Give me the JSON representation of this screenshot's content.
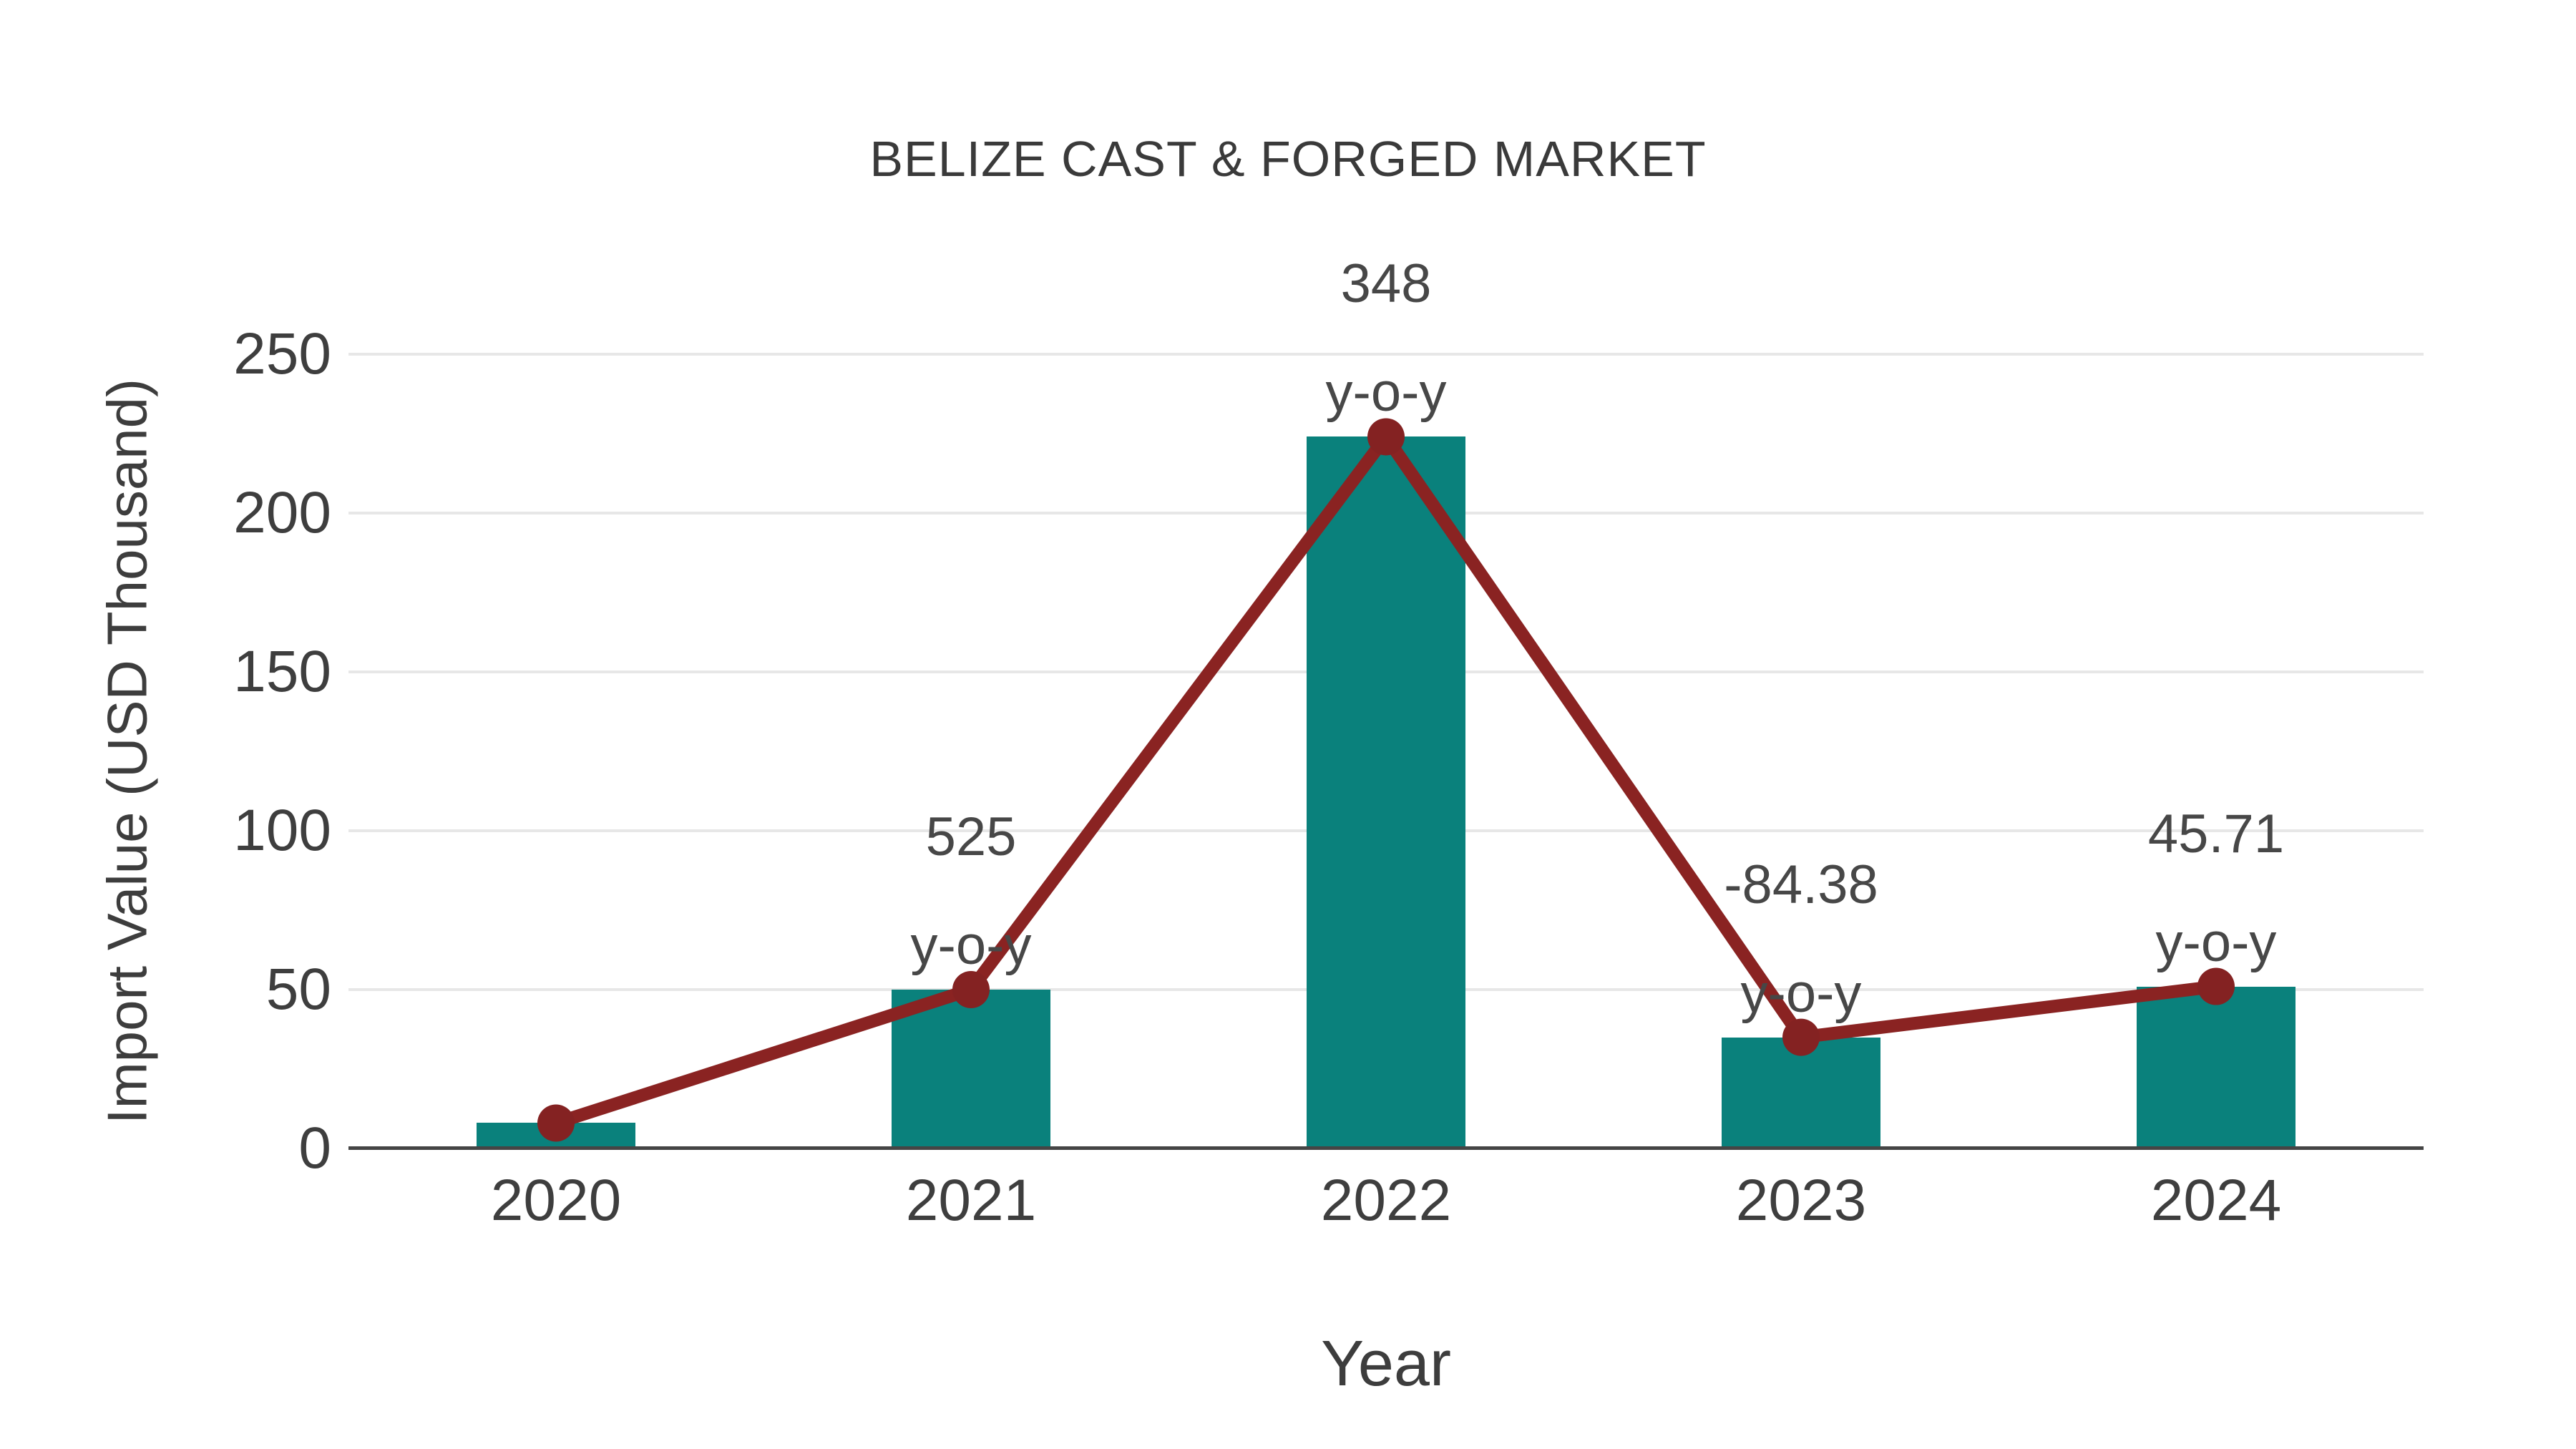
{
  "page": {
    "background": "#ffffff"
  },
  "chart_data": {
    "type": "bar",
    "title": "BELIZE CAST & FORGED MARKET",
    "xlabel": "Year",
    "ylabel": "Import Value (USD Thousand)",
    "categories": [
      "2020",
      "2021",
      "2022",
      "2023",
      "2024"
    ],
    "series": [
      {
        "name": "import-value-bars",
        "type": "bar",
        "color": "#0a817c",
        "values": [
          8,
          50,
          224,
          35,
          51
        ]
      },
      {
        "name": "yoy-trend-line",
        "type": "line",
        "color": "#8a2322",
        "marker_color": "#842222",
        "values": [
          8,
          50,
          224,
          35,
          51
        ]
      }
    ],
    "yticks": [
      0,
      50,
      100,
      150,
      200,
      250
    ],
    "ylim": [
      0,
      250
    ],
    "grid": true,
    "legend_position": "none",
    "annotations": [
      {
        "category": "2021",
        "line1": "525",
        "line2": "y-o-y"
      },
      {
        "category": "2022",
        "line1": "348",
        "line2": "y-o-y"
      },
      {
        "category": "2023",
        "line1": "-84.38",
        "line2": "y-o-y"
      },
      {
        "category": "2024",
        "line1": "45.71",
        "line2": "y-o-y"
      }
    ],
    "colors": {
      "text": "#3e3e3e",
      "grid": "#e7e7e7",
      "axis": "#454545",
      "background": "#ffffff"
    }
  }
}
